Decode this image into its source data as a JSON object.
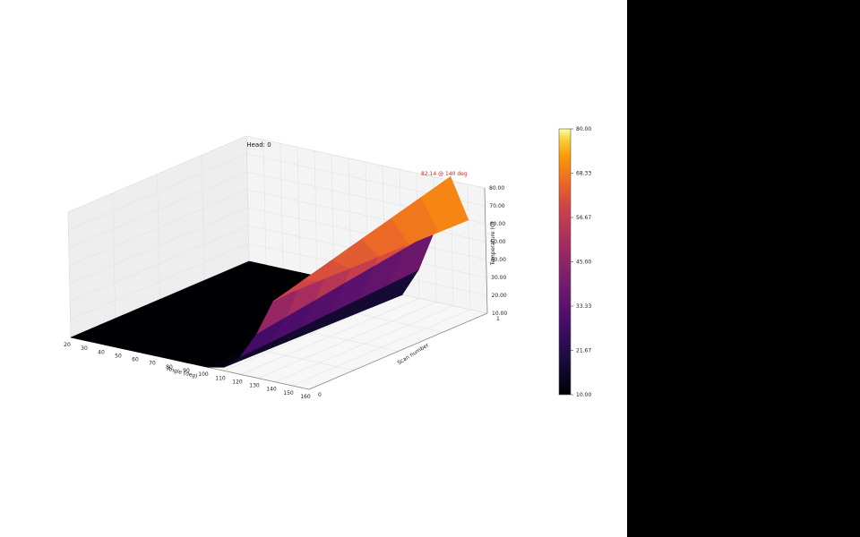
{
  "chart_data": {
    "type": "surface3d",
    "title": "Head: 0",
    "xlabel": "Angle (deg)",
    "ylabel": "Scan number",
    "zlabel": "Temperature (C)",
    "x_ticks": [
      "20",
      "30",
      "40",
      "50",
      "60",
      "70",
      "80",
      "90",
      "100",
      "110",
      "120",
      "130",
      "140",
      "150",
      "160"
    ],
    "y_ticks": [
      "0",
      "1"
    ],
    "z_ticks": [
      "10.00",
      "20.00",
      "30.00",
      "40.00",
      "50.00",
      "60.00",
      "70.00",
      "80.00"
    ],
    "xlim": [
      20,
      160
    ],
    "ylim": [
      0,
      1
    ],
    "zlim": [
      10,
      80
    ],
    "annotation": "82.14 @ 140 deg",
    "peak": {
      "angle": 140,
      "value": 82.14
    },
    "surface": {
      "x": [
        20,
        30,
        40,
        50,
        60,
        70,
        80,
        90,
        100,
        110,
        120,
        130,
        140,
        150
      ],
      "scan_0": [
        10,
        10,
        10,
        10,
        10,
        10,
        10,
        10,
        10,
        12,
        20,
        35,
        55,
        62
      ],
      "scan_1": [
        10,
        10,
        10,
        10,
        10,
        10,
        10,
        10,
        10,
        10,
        26,
        50,
        82.14,
        60
      ]
    },
    "colormap": "inferno",
    "colorbar": {
      "min": 10,
      "max": 80,
      "ticks": [
        "10.00",
        "21.67",
        "33.33",
        "45.00",
        "56.67",
        "68.33",
        "80.00"
      ]
    }
  }
}
